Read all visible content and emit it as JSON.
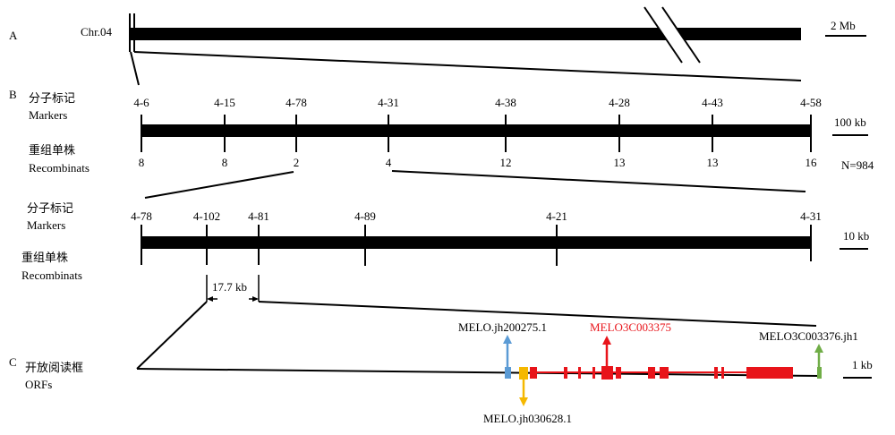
{
  "panelA": {
    "label": "A",
    "chromosome": "Chr.04",
    "scale": "2 Mb"
  },
  "panelB": {
    "label": "B",
    "markers_cn": "分子标记",
    "markers_en": "Markers",
    "recomb_cn": "重组单株",
    "recomb_en": "Recombinats",
    "scale": "100 kb",
    "n": "N=984",
    "markers": [
      "4-6",
      "4-15",
      "4-78",
      "4-31",
      "4-38",
      "4-28",
      "4-43",
      "4-58"
    ],
    "recombinants": [
      "8",
      "8",
      "2",
      "4",
      "12",
      "13",
      "13",
      "16"
    ]
  },
  "panelB2": {
    "markers_cn": "分子标记",
    "markers_en": "Markers",
    "recomb_cn": "重组单株",
    "recomb_en": "Recombinats",
    "scale": "10 kb",
    "markers": [
      "4-78",
      "4-102",
      "4-81",
      "4-89",
      "4-21",
      "4-31"
    ],
    "interval": "17.7 kb"
  },
  "panelC": {
    "label": "C",
    "orf_cn": "开放阅读框",
    "orf_en": "ORFs",
    "scale": "1 kb",
    "genes": [
      {
        "name": "MELO.jh200275.1",
        "color": "#5b9bd5",
        "direction": "up"
      },
      {
        "name": "MELO3C003375",
        "color": "#e8141a",
        "direction": "up"
      },
      {
        "name": "MELO3C003376.jh1",
        "color": "#70ad47",
        "direction": "up"
      },
      {
        "name": "MELO.jh030628.1",
        "color": "#f5b800",
        "direction": "down"
      }
    ]
  }
}
